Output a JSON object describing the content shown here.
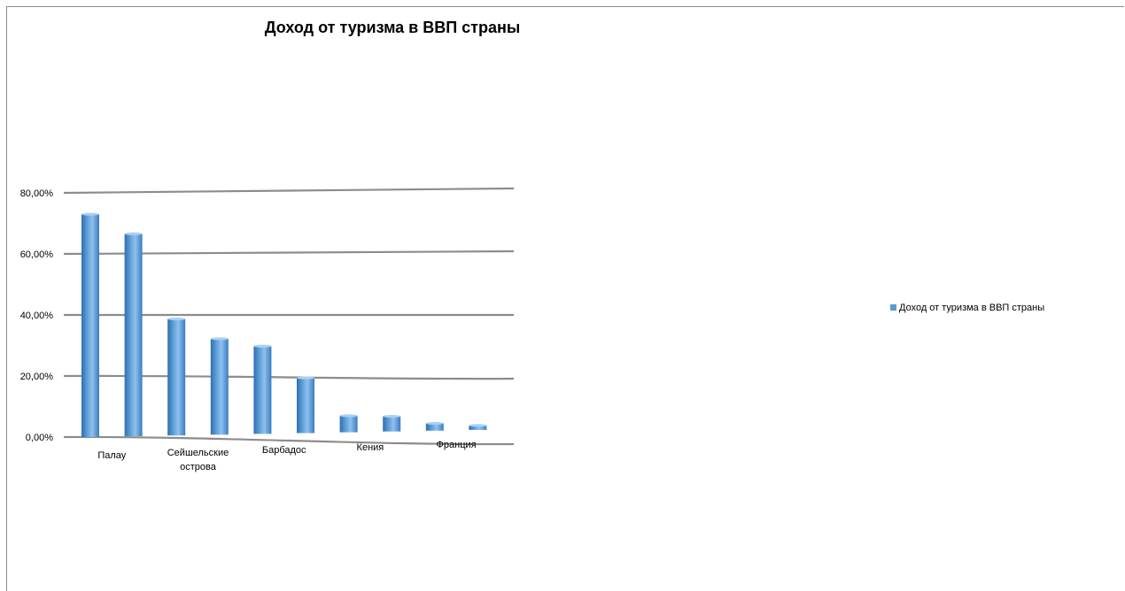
{
  "chart_data": {
    "type": "bar",
    "title": "Доход от туризма в ВВП страны",
    "xlabel": "",
    "ylabel": "",
    "categories": [
      "Палау",
      "",
      "Сейшельские острова",
      "",
      "Барбадос",
      "",
      "Кения",
      "",
      "Франция",
      ""
    ],
    "series": [
      {
        "name": "Доход от туризма в ВВП страны",
        "values": [
          0.73,
          0.666,
          0.387,
          0.322,
          0.298,
          0.194,
          0.07,
          0.068,
          0.045,
          0.038
        ]
      }
    ],
    "ylim": [
      0,
      0.8
    ],
    "yticks": [
      0,
      0.2,
      0.4,
      0.6,
      0.8
    ],
    "ytick_labels": [
      "0,00%",
      "20,00%",
      "40,00%",
      "60,00%",
      "80,00%"
    ],
    "grid": true,
    "legend_position": "right",
    "colors": {
      "bar": "#5b9bd5",
      "bar_dark": "#2f6fb0",
      "grid": "#8c8c8c"
    }
  }
}
